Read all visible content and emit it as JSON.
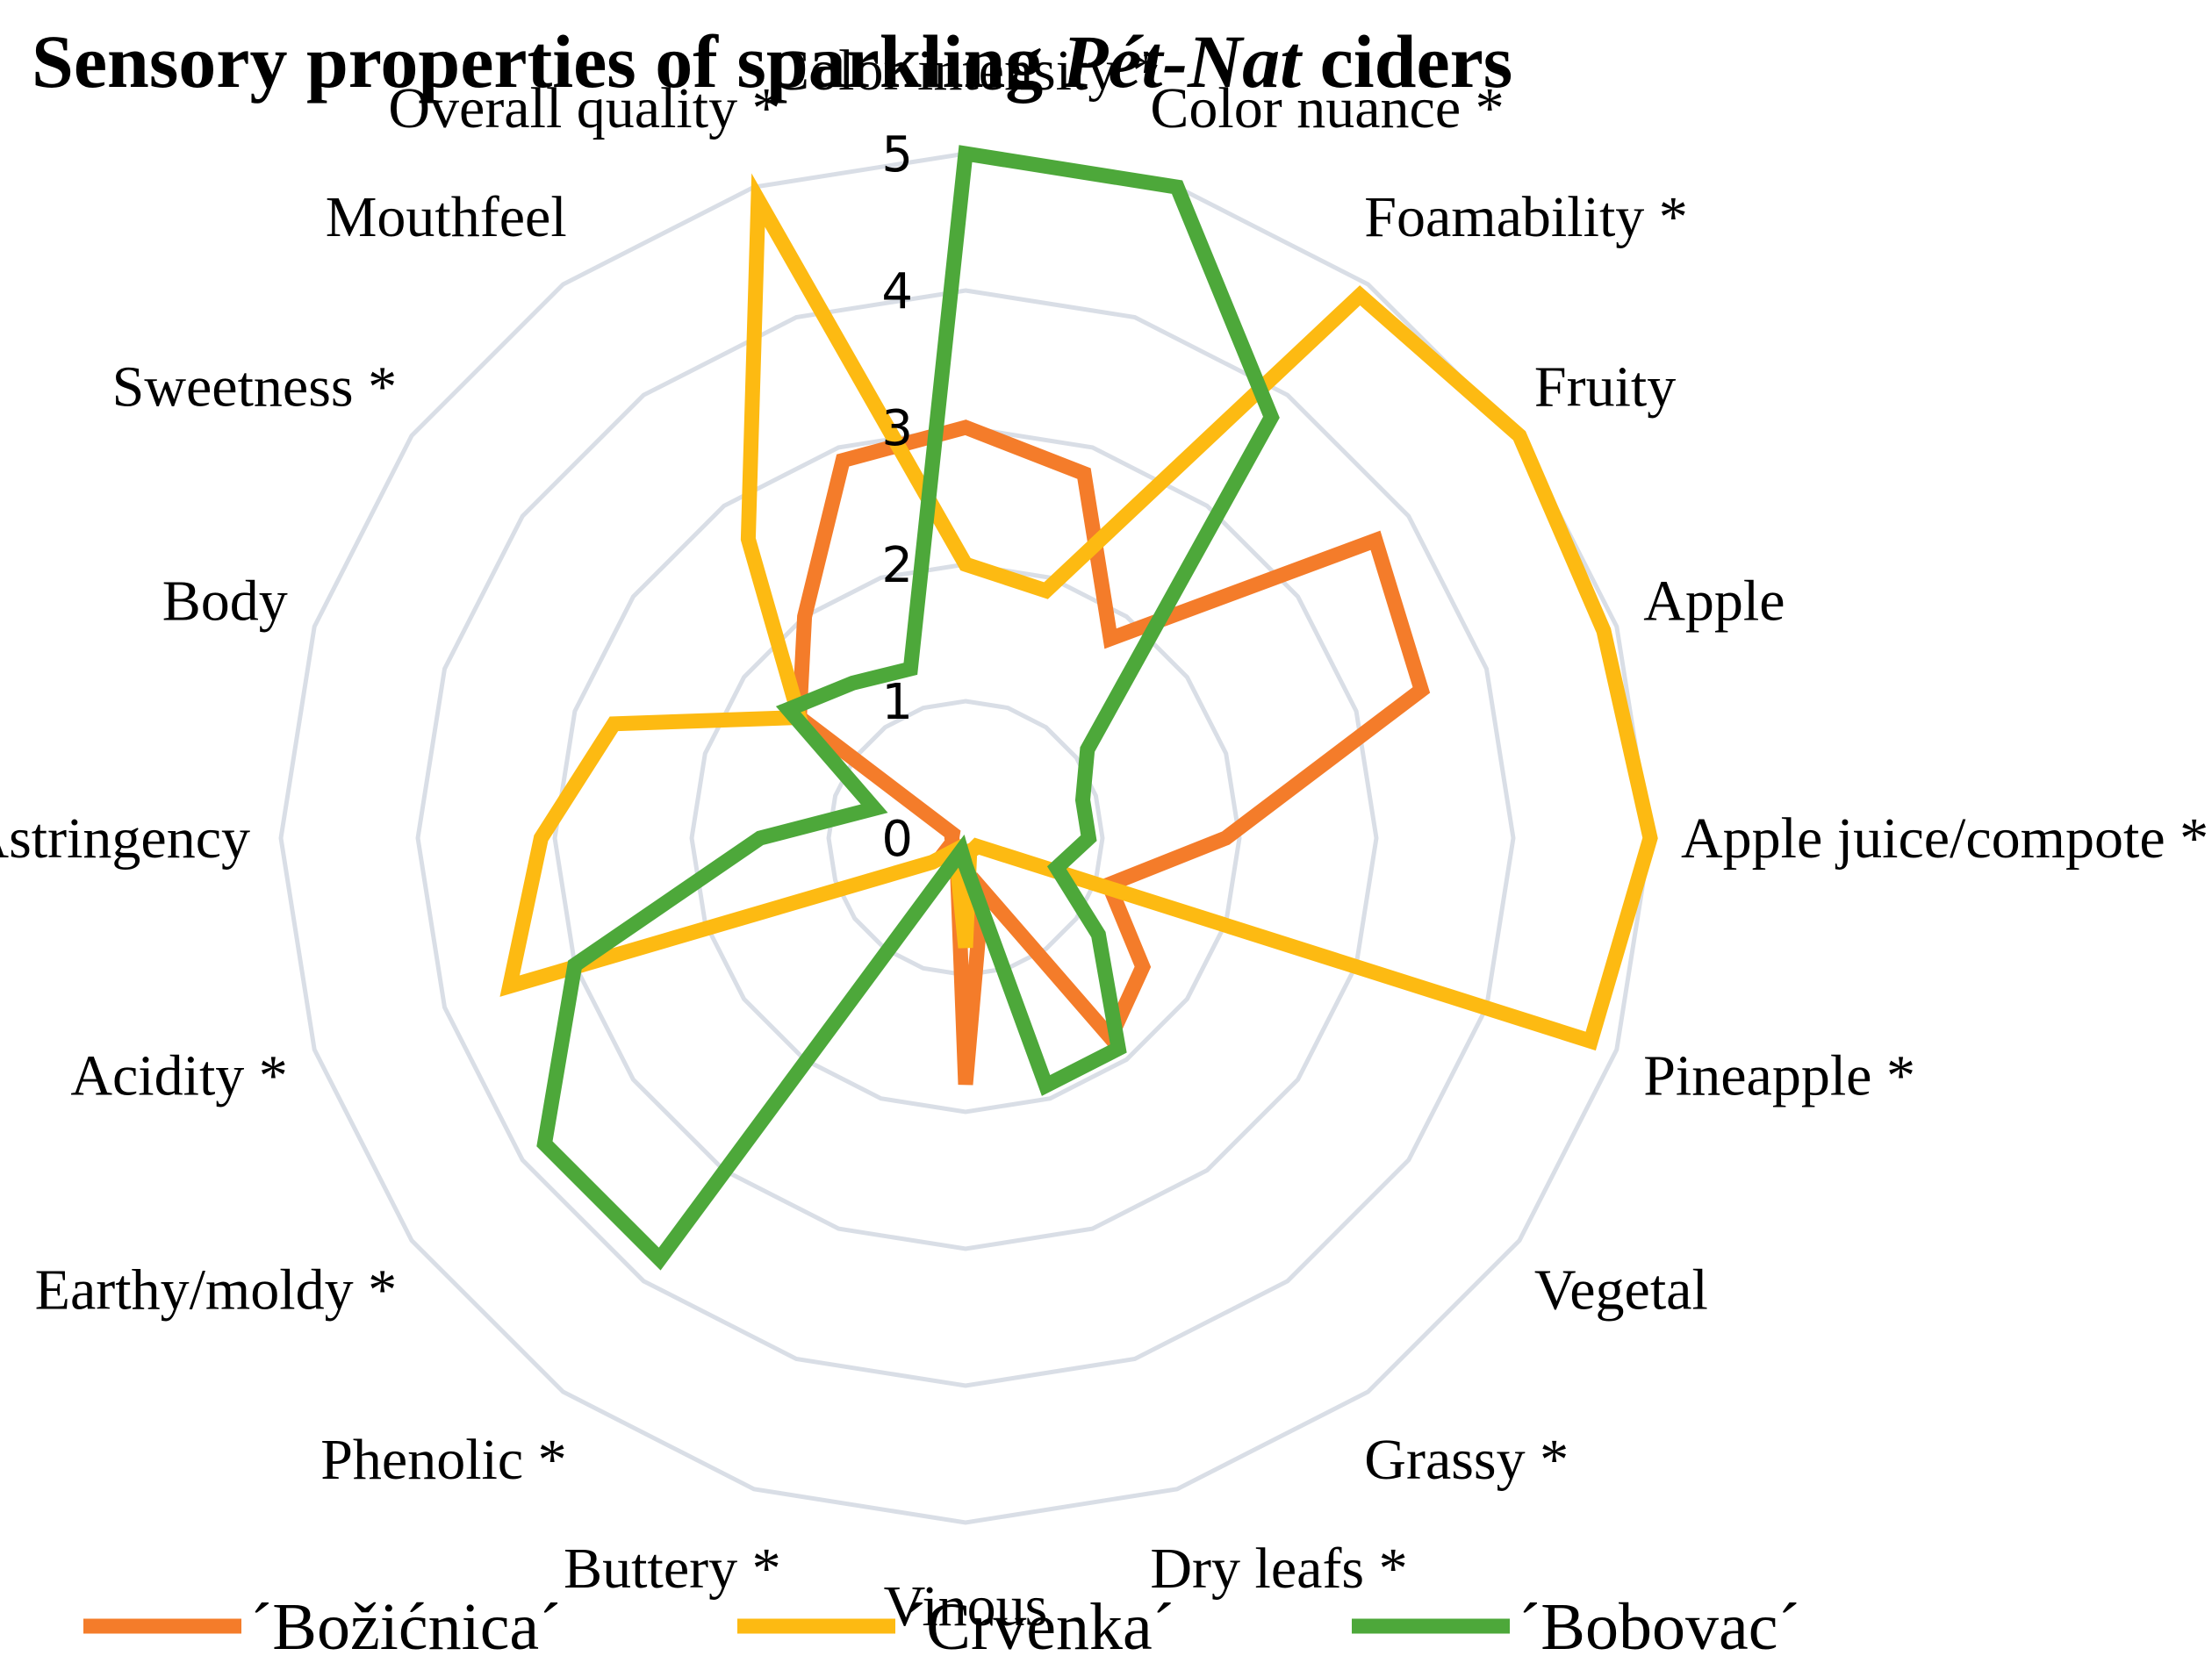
{
  "title": {
    "prefix": "Sensory properties of sparkling ",
    "italic": "Pét-Nat",
    "suffix": " ciders"
  },
  "chart_data": {
    "type": "radar",
    "title": "Sensory properties of sparkling Pét-Nat ciders",
    "rlim": [
      0,
      5
    ],
    "ticks": [
      "0",
      "1",
      "2",
      "3",
      "4",
      "5"
    ],
    "grid": true,
    "legend_position": "bottom",
    "categories": [
      "Color intensity *",
      "Color nuance *",
      "Foamability *",
      "Fruity",
      "Apple",
      "Apple juice/compote *",
      "Pineapple *",
      "Vegetal",
      "Grassy *",
      "Dry leafs *",
      "Vinous",
      "Buttery *",
      "Phenolic *",
      "Earthy/moldy *",
      "Acidity *",
      "Astringency",
      "Body",
      "Sweetness *",
      "Mouthfeel",
      "Overall quality *"
    ],
    "series": [
      {
        "name": "´Božićnica´",
        "color": "#F47C2A",
        "values": [
          3.0,
          2.8,
          1.8,
          3.7,
          3.5,
          1.9,
          1.1,
          1.6,
          1.8,
          0.4,
          1.8,
          0.2,
          0.1,
          0.2,
          0.1,
          0.1,
          0.1,
          1.5,
          2.0,
          2.9
        ]
      },
      {
        "name": "´Crvenka´",
        "color": "#FDBA12",
        "values": [
          2.0,
          1.9,
          4.9,
          5.0,
          4.9,
          5.0,
          4.8,
          0.1,
          0.1,
          0.1,
          0.8,
          0.2,
          0.1,
          0.3,
          3.5,
          3.1,
          2.7,
          1.5,
          2.7,
          4.9
        ]
      },
      {
        "name": "´Bobovac´",
        "color": "#4DA83A",
        "values": [
          5.0,
          5.0,
          3.8,
          1.1,
          0.9,
          0.9,
          0.7,
          1.2,
          1.9,
          1.9,
          0.2,
          0.1,
          3.8,
          3.8,
          3.0,
          1.5,
          0.7,
          1.6,
          1.4,
          1.3
        ]
      }
    ]
  }
}
